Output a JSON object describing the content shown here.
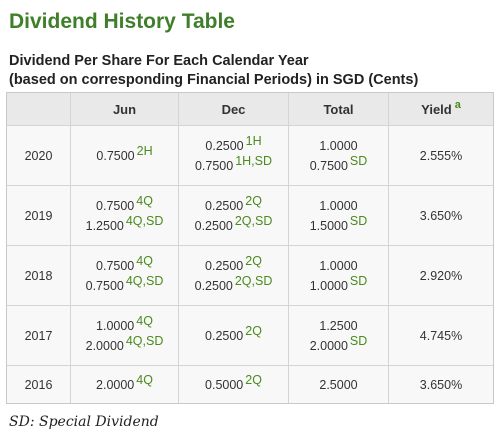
{
  "title": "Dividend History Table",
  "subtitle": {
    "line1": "Dividend Per Share For Each Calendar Year",
    "line2": "(based on corresponding Financial Periods) in SGD (Cents)"
  },
  "table": {
    "headers": {
      "year": "",
      "jun": "Jun",
      "dec": "Dec",
      "total": "Total",
      "yield": "Yield",
      "yield_note": "a"
    },
    "rows": [
      {
        "year": "2020",
        "jun": [
          {
            "value": "0.7500",
            "note": "2H"
          }
        ],
        "dec": [
          {
            "value": "0.2500",
            "note": "1H"
          },
          {
            "value": "0.7500",
            "note": "1H,SD"
          }
        ],
        "total": [
          {
            "value": "1.0000",
            "note": ""
          },
          {
            "value": "0.7500",
            "note": "SD"
          }
        ],
        "yield": "2.555%"
      },
      {
        "year": "2019",
        "jun": [
          {
            "value": "0.7500",
            "note": "4Q"
          },
          {
            "value": "1.2500",
            "note": "4Q,SD"
          }
        ],
        "dec": [
          {
            "value": "0.2500",
            "note": "2Q"
          },
          {
            "value": "0.2500",
            "note": "2Q,SD"
          }
        ],
        "total": [
          {
            "value": "1.0000",
            "note": ""
          },
          {
            "value": "1.5000",
            "note": "SD"
          }
        ],
        "yield": "3.650%"
      },
      {
        "year": "2018",
        "jun": [
          {
            "value": "0.7500",
            "note": "4Q"
          },
          {
            "value": "0.7500",
            "note": "4Q,SD"
          }
        ],
        "dec": [
          {
            "value": "0.2500",
            "note": "2Q"
          },
          {
            "value": "0.2500",
            "note": "2Q,SD"
          }
        ],
        "total": [
          {
            "value": "1.0000",
            "note": ""
          },
          {
            "value": "1.0000",
            "note": "SD"
          }
        ],
        "yield": "2.920%"
      },
      {
        "year": "2017",
        "jun": [
          {
            "value": "1.0000",
            "note": "4Q"
          },
          {
            "value": "2.0000",
            "note": "4Q,SD"
          }
        ],
        "dec": [
          {
            "value": "0.2500",
            "note": "2Q"
          }
        ],
        "total": [
          {
            "value": "1.2500",
            "note": ""
          },
          {
            "value": "2.0000",
            "note": "SD"
          }
        ],
        "yield": "4.745%"
      },
      {
        "year": "2016",
        "jun": [
          {
            "value": "2.0000",
            "note": "4Q"
          }
        ],
        "dec": [
          {
            "value": "0.5000",
            "note": "2Q"
          }
        ],
        "total": [
          {
            "value": "2.5000",
            "note": ""
          }
        ],
        "yield": "3.650%"
      }
    ]
  },
  "footnote": "SD: Special Dividend",
  "colors": {
    "title": "#3f7f2a",
    "note": "#4a8a1e",
    "header_bg": "#e9e9e9",
    "cell_bg": "#f8f8f8"
  }
}
